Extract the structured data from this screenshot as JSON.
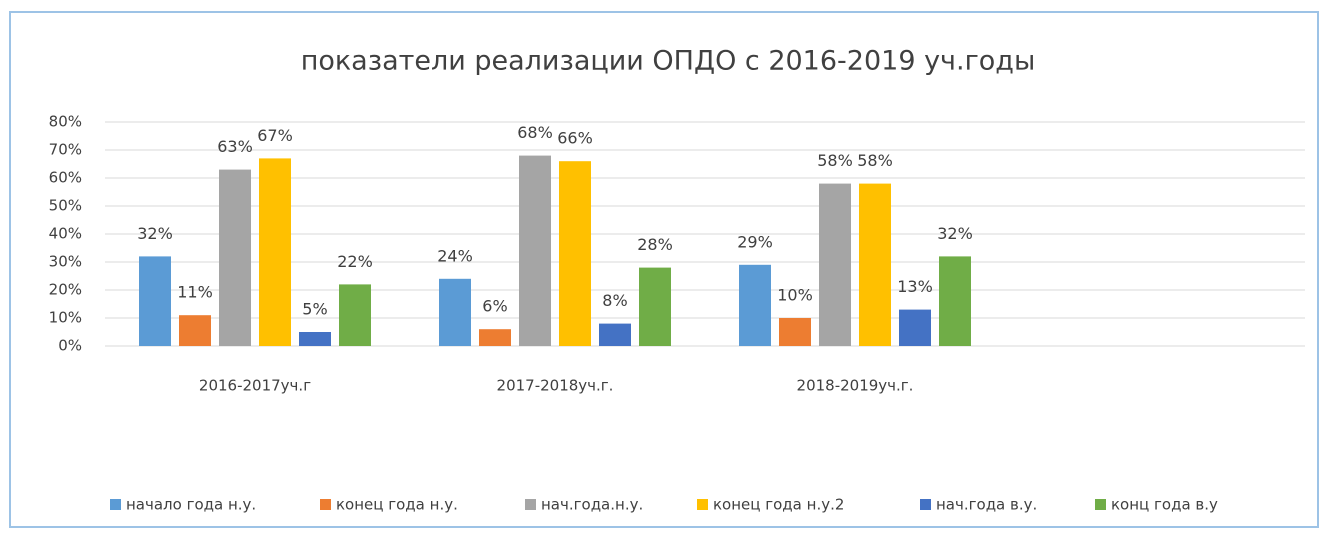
{
  "chart_data": {
    "type": "bar",
    "title": "показатели реализации ОПДО с 2016-2019 уч.годы",
    "categories": [
      "2016-2017уч.г",
      "2017-2018уч.г.",
      "2018-2019уч.г.",
      null
    ],
    "series": [
      {
        "name": "начало года н.у.",
        "color": "#5b9bd5",
        "values": [
          32,
          24,
          29,
          null
        ],
        "value_labels": [
          "32%",
          "24%",
          "29%",
          null
        ]
      },
      {
        "name": "конец года н.у.",
        "color": "#ed7d31",
        "values": [
          11,
          6,
          10,
          null
        ],
        "value_labels": [
          "11%",
          "6%",
          "10%",
          null
        ]
      },
      {
        "name": "нач.года.н.у.",
        "color": "#a5a5a5",
        "values": [
          63,
          68,
          58,
          null
        ],
        "value_labels": [
          "63%",
          "68%",
          "58%",
          null
        ]
      },
      {
        "name": "конец года н.у.2",
        "color": "#ffc000",
        "values": [
          67,
          66,
          58,
          null
        ],
        "value_labels": [
          "67%",
          "66%",
          "58%",
          null
        ]
      },
      {
        "name": "нач.года в.у.",
        "color": "#4472c4",
        "values": [
          5,
          8,
          13,
          null
        ],
        "value_labels": [
          "5%",
          "8%",
          "13%",
          null
        ]
      },
      {
        "name": "конц года в.у",
        "color": "#70ad47",
        "values": [
          22,
          28,
          32,
          null
        ],
        "value_labels": [
          "22%",
          "28%",
          "32%",
          null
        ]
      }
    ],
    "ylim": [
      0,
      80
    ],
    "yticks": [
      {
        "value": 0,
        "label": "0%"
      },
      {
        "value": 10,
        "label": "10%"
      },
      {
        "value": 20,
        "label": "20%"
      },
      {
        "value": 30,
        "label": "30%"
      },
      {
        "value": 40,
        "label": "40%"
      },
      {
        "value": 50,
        "label": "50%"
      },
      {
        "value": 60,
        "label": "60%"
      },
      {
        "value": 70,
        "label": "70%"
      },
      {
        "value": 80,
        "label": "80%"
      }
    ],
    "grid": true,
    "legend": "bottom"
  }
}
